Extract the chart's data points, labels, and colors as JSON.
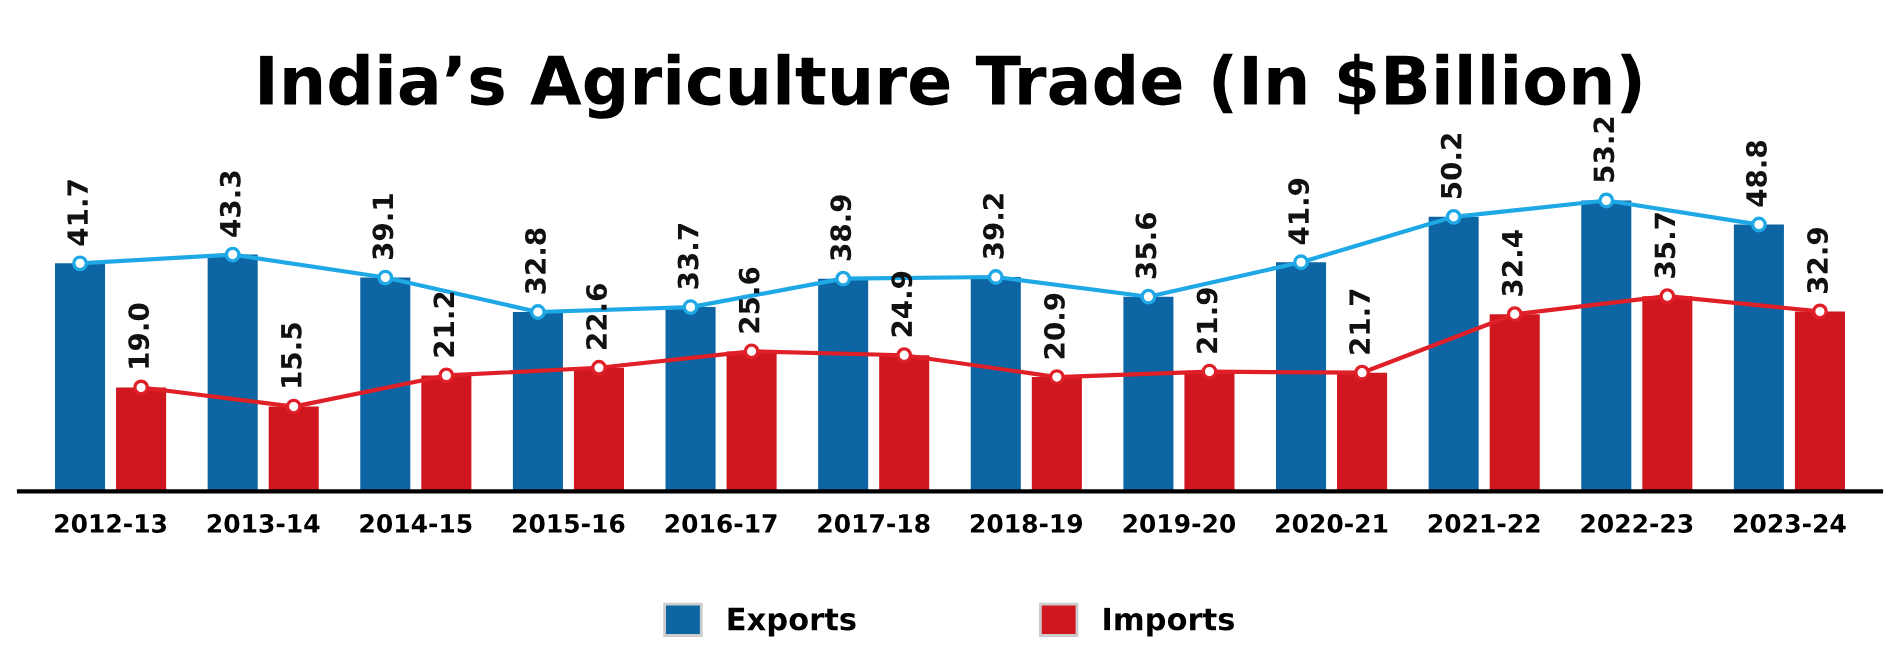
{
  "chart_data": {
    "type": "bar",
    "title": "India’s Agriculture Trade (In $Billion)",
    "categories": [
      "2012-13",
      "2013-14",
      "2014-15",
      "2015-16",
      "2016-17",
      "2017-18",
      "2018-19",
      "2019-20",
      "2020-21",
      "2021-22",
      "2022-23",
      "2023-24"
    ],
    "series": [
      {
        "name": "Exports",
        "color": "#0e65a3",
        "values": [
          41.7,
          43.3,
          39.1,
          32.8,
          33.7,
          38.9,
          39.2,
          35.6,
          41.9,
          50.2,
          53.2,
          48.8
        ],
        "value_labels": [
          "41.7",
          "43.3",
          "39.1",
          "32.8",
          "33.7",
          "38.9",
          "39.2",
          "35.6",
          "41.9",
          "50.2",
          "53.2",
          "48.8"
        ]
      },
      {
        "name": "Imports",
        "color": "#d0161f",
        "values": [
          19.0,
          15.5,
          21.2,
          22.6,
          25.6,
          24.9,
          20.9,
          21.9,
          21.7,
          32.4,
          35.7,
          32.9
        ],
        "value_labels": [
          "19.0",
          "15.5",
          "21.2",
          "22.6",
          "25.6",
          "24.9",
          "20.9",
          "21.9",
          "21.7",
          "32.4",
          "35.7",
          "32.9"
        ]
      },
      {
        "type": "line",
        "color": "#1fa8e6",
        "values": [
          41.7,
          43.3,
          39.1,
          32.8,
          33.7,
          38.9,
          39.2,
          35.6,
          41.9,
          50.2,
          53.2,
          48.8
        ]
      },
      {
        "type": "line",
        "color": "#e02028",
        "values": [
          19.0,
          15.5,
          21.2,
          22.6,
          25.6,
          24.9,
          20.9,
          21.9,
          21.7,
          32.4,
          35.7,
          32.9
        ]
      }
    ],
    "tick_labels": "x",
    "legend": "bottom",
    "grid": false,
    "marker": "circle"
  }
}
